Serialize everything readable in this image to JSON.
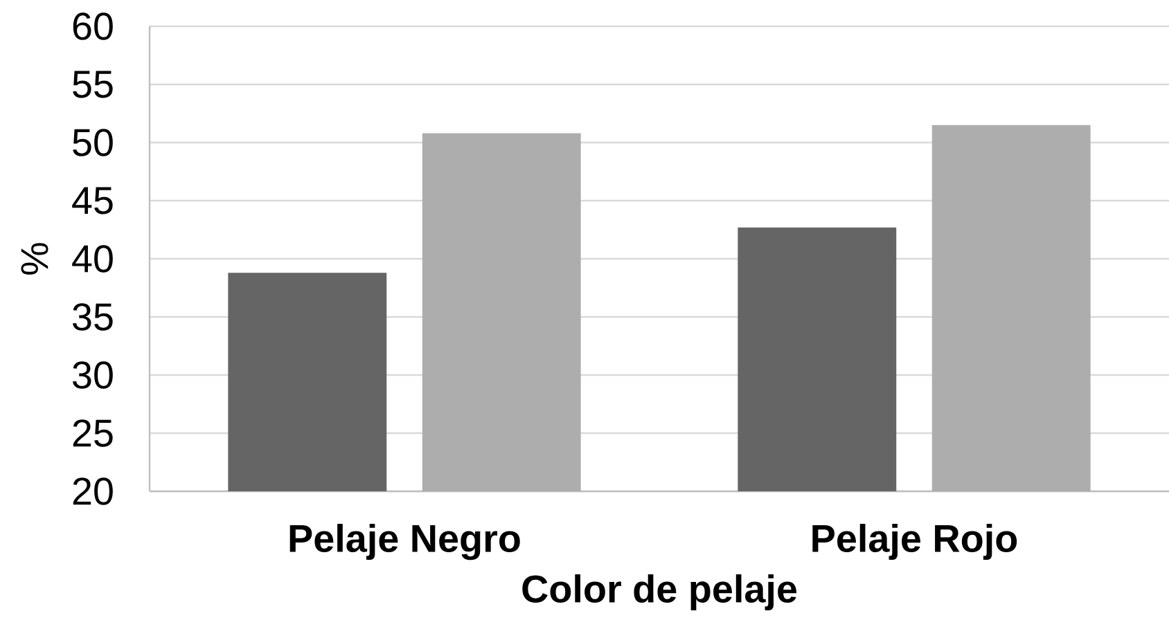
{
  "chart_data": {
    "type": "bar",
    "xlabel": "Color de pelaje",
    "ylabel": "%",
    "categories": [
      "Pelaje Negro",
      "Pelaje Rojo"
    ],
    "series": [
      {
        "color": "#656565",
        "values": [
          38.8,
          42.7
        ]
      },
      {
        "color": "#adadad",
        "values": [
          50.8,
          51.5
        ]
      }
    ],
    "ylim": [
      20,
      60
    ],
    "yticks": [
      20,
      25,
      30,
      35,
      40,
      45,
      50,
      55,
      60
    ],
    "grid": "y"
  }
}
